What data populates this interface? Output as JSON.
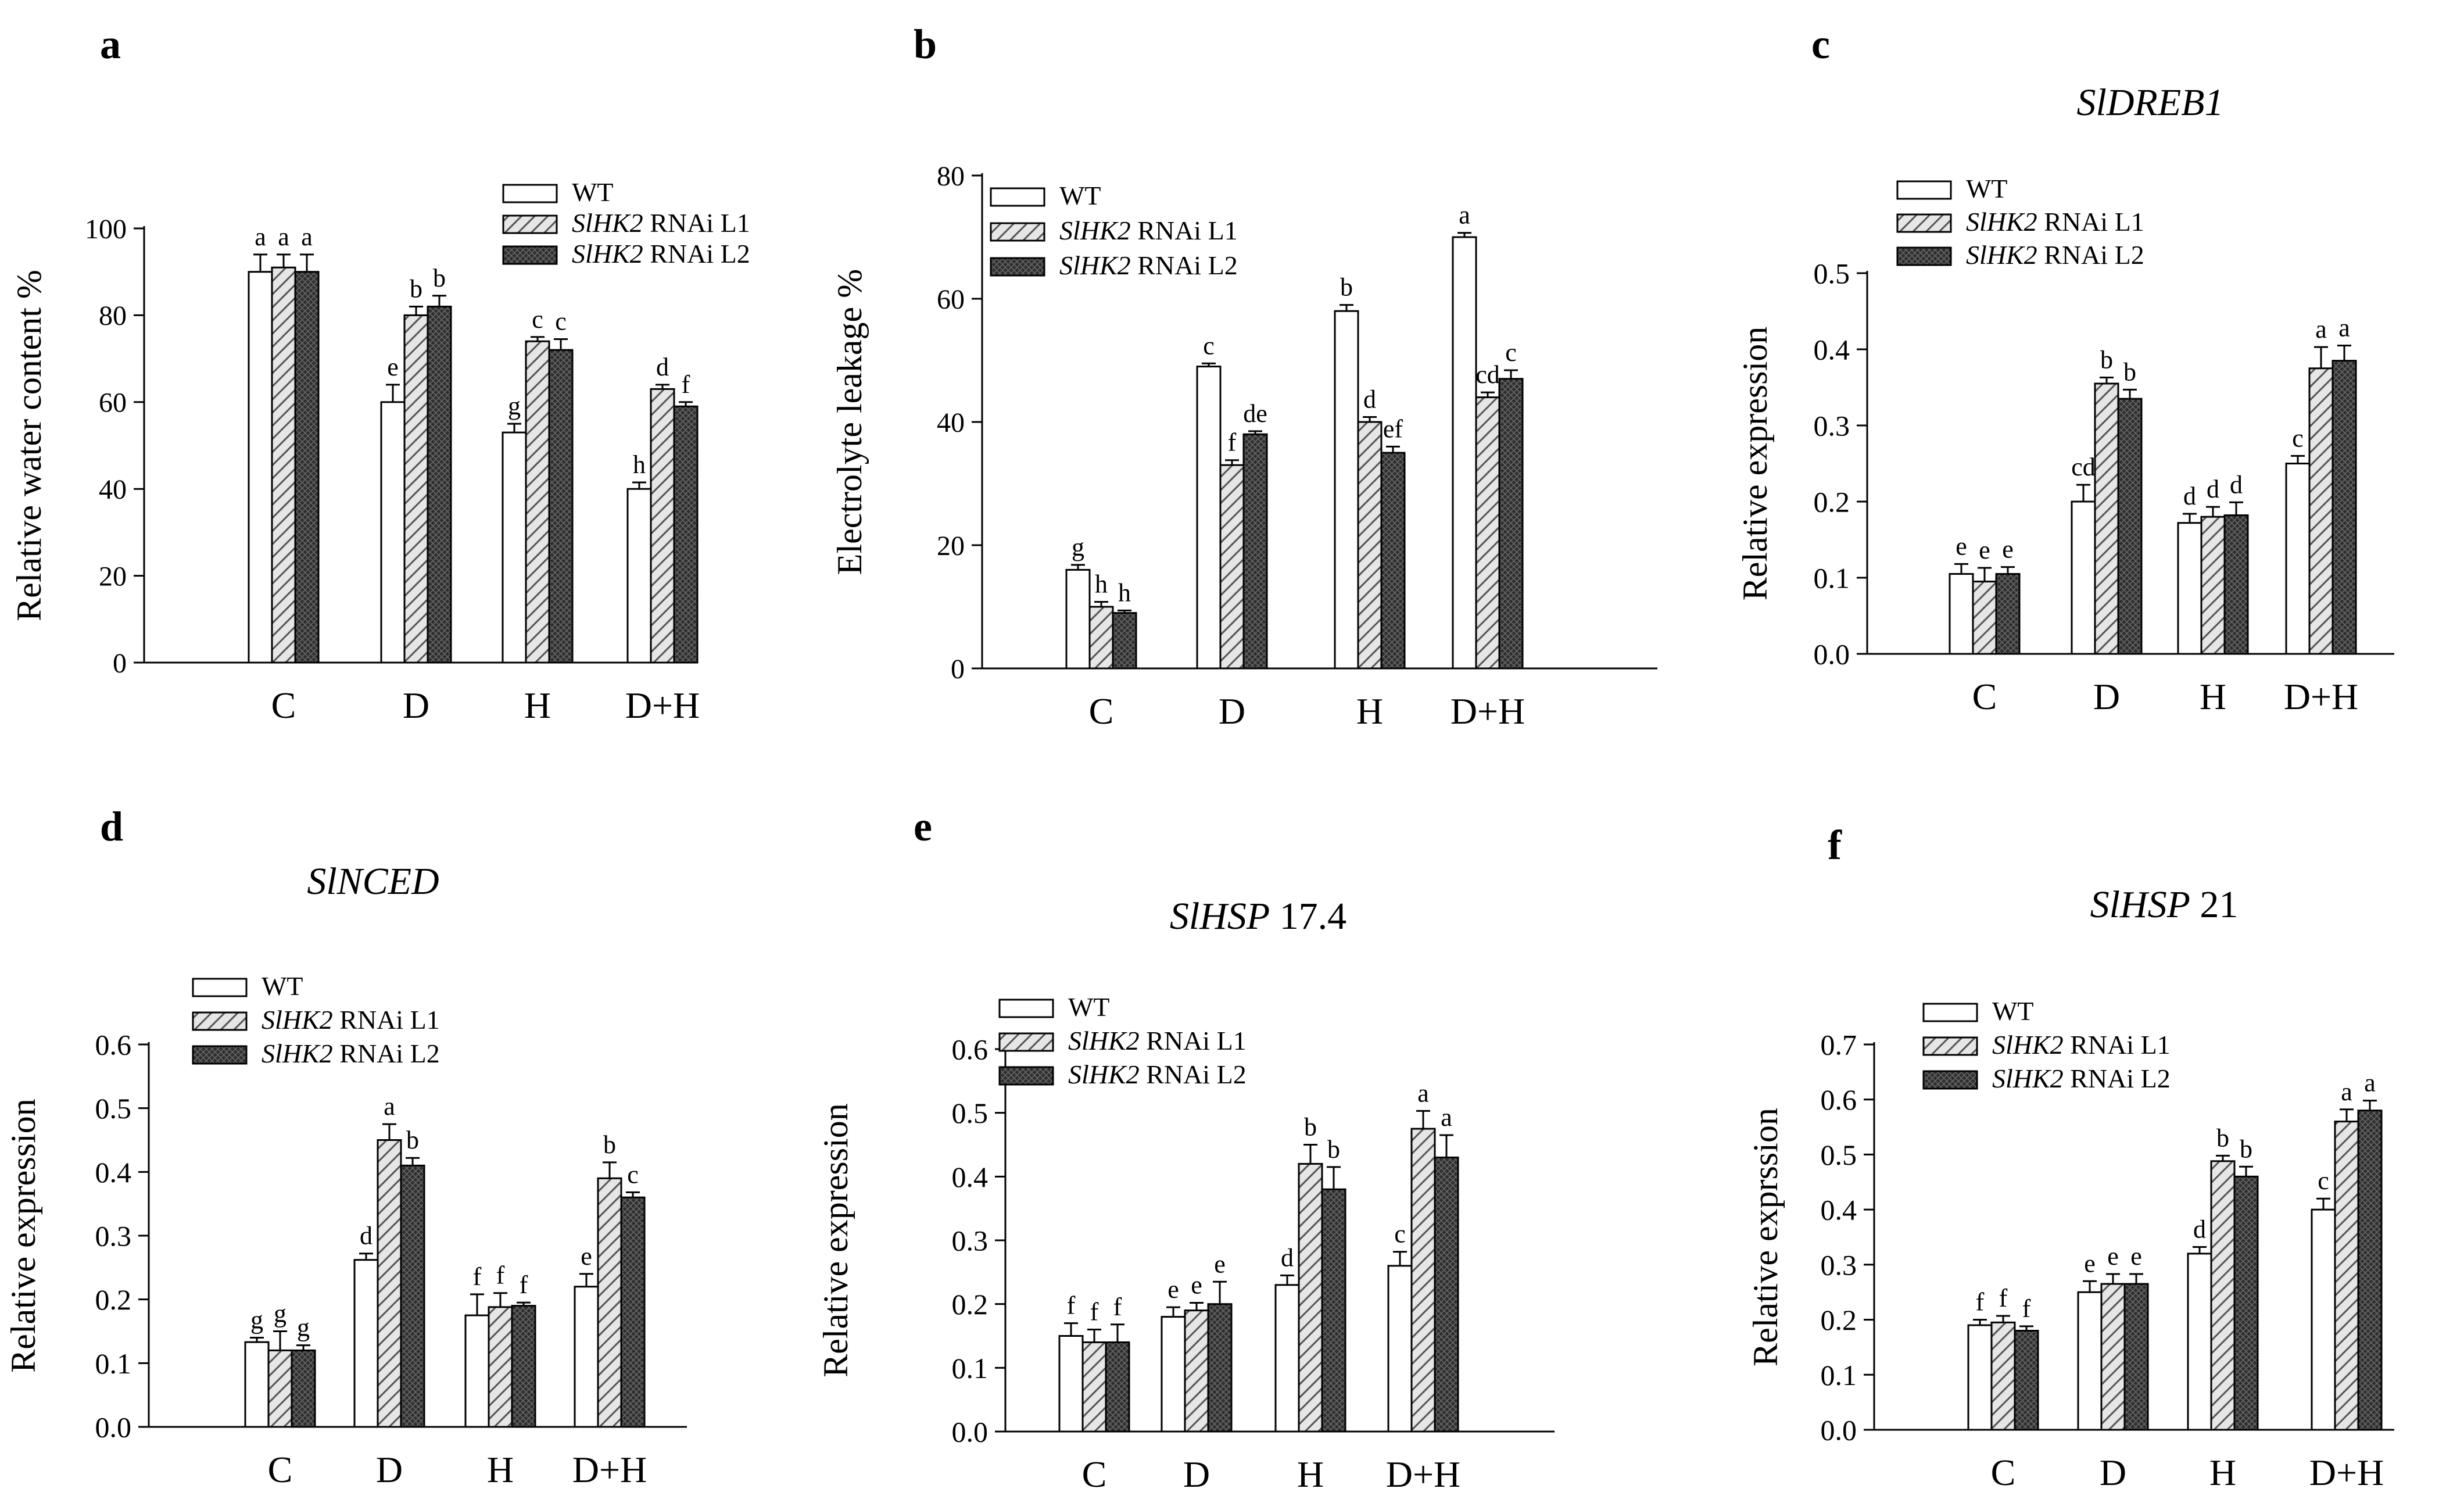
{
  "figure": {
    "legend_labels": {
      "wt": "WT",
      "rnai_gene": "SlHK2",
      "rnai_l1_suffix": "RNAi L1",
      "rnai_l2_suffix": "RNAi L2"
    },
    "colors": {
      "wt": "#ffffff",
      "l1": "#d9d9d9",
      "l2": "#3a3a3a",
      "axis": "#000000"
    }
  },
  "chart_data": [
    {
      "panel": "a",
      "type": "bar",
      "title": "",
      "title_gene": "",
      "title_suffix": "",
      "ylabel": "Relative water content %",
      "ylim": [
        0,
        100
      ],
      "yticks": [
        "0",
        "20",
        "40",
        "60",
        "80",
        "100"
      ],
      "categories": [
        "C",
        "D",
        "H",
        "D+H"
      ],
      "series": [
        {
          "name": "WT",
          "values": [
            90,
            60,
            53,
            40
          ],
          "errors": [
            4,
            4,
            2,
            1.5
          ],
          "letters": [
            "a",
            "e",
            "g",
            "h"
          ]
        },
        {
          "name": "SlHK2 RNAi L1",
          "values": [
            91,
            80,
            74,
            63
          ],
          "errors": [
            3,
            2,
            1,
            1
          ],
          "letters": [
            "a",
            "b",
            "c",
            "d"
          ]
        },
        {
          "name": "SlHK2 RNAi L2",
          "values": [
            90,
            82,
            72,
            59
          ],
          "errors": [
            4,
            2.5,
            2.5,
            1
          ],
          "letters": [
            "a",
            "b",
            "c",
            "f"
          ]
        }
      ]
    },
    {
      "panel": "b",
      "type": "bar",
      "title": "",
      "title_gene": "",
      "title_suffix": "",
      "ylabel": "Electrolyte leakage %",
      "ylim": [
        0,
        80
      ],
      "yticks": [
        "0",
        "20",
        "40",
        "60",
        "80"
      ],
      "categories": [
        "C",
        "D",
        "H",
        "D+H"
      ],
      "series": [
        {
          "name": "WT",
          "values": [
            16,
            49,
            58,
            70
          ],
          "errors": [
            0.8,
            0.5,
            1,
            0.7
          ],
          "letters": [
            "g",
            "c",
            "b",
            "a"
          ]
        },
        {
          "name": "SlHK2 RNAi L1",
          "values": [
            10,
            33,
            40,
            44
          ],
          "errors": [
            0.8,
            0.8,
            0.8,
            0.8
          ],
          "letters": [
            "h",
            "f",
            "d",
            "cd"
          ]
        },
        {
          "name": "SlHK2 RNAi L2",
          "values": [
            9,
            38,
            35,
            47
          ],
          "errors": [
            0.4,
            0.5,
            1,
            1.4
          ],
          "letters": [
            "h",
            "de",
            "ef",
            "c"
          ]
        }
      ]
    },
    {
      "panel": "c",
      "type": "bar",
      "title": "SlDREB1",
      "title_gene": "SlDREB1",
      "title_suffix": "",
      "ylabel": "Relative expression",
      "ylim": [
        0,
        0.5
      ],
      "yticks": [
        "0.0",
        "0.1",
        "0.2",
        "0.3",
        "0.4",
        "0.5"
      ],
      "categories": [
        "C",
        "D",
        "H",
        "D+H"
      ],
      "series": [
        {
          "name": "WT",
          "values": [
            0.105,
            0.2,
            0.172,
            0.25
          ],
          "errors": [
            0.013,
            0.022,
            0.012,
            0.01
          ],
          "letters": [
            "e",
            "cd",
            "d",
            "c"
          ]
        },
        {
          "name": "SlHK2 RNAi L1",
          "values": [
            0.095,
            0.355,
            0.18,
            0.375
          ],
          "errors": [
            0.018,
            0.008,
            0.013,
            0.028
          ],
          "letters": [
            "e",
            "b",
            "d",
            "a"
          ]
        },
        {
          "name": "SlHK2 RNAi L2",
          "values": [
            0.105,
            0.335,
            0.182,
            0.385
          ],
          "errors": [
            0.009,
            0.012,
            0.017,
            0.02
          ],
          "letters": [
            "e",
            "b",
            "d",
            "a"
          ]
        }
      ]
    },
    {
      "panel": "d",
      "type": "bar",
      "title": "SlNCED",
      "title_gene": "SlNCED",
      "title_suffix": "",
      "ylabel": "Relative expression",
      "ylim": [
        0,
        0.6
      ],
      "yticks": [
        "0.0",
        "0.1",
        "0.2",
        "0.3",
        "0.4",
        "0.5",
        "0.6"
      ],
      "categories": [
        "C",
        "D",
        "H",
        "D+H"
      ],
      "series": [
        {
          "name": "WT",
          "values": [
            0.133,
            0.262,
            0.175,
            0.22
          ],
          "errors": [
            0.007,
            0.01,
            0.033,
            0.02
          ],
          "letters": [
            "g",
            "d",
            "f",
            "e"
          ]
        },
        {
          "name": "SlHK2 RNAi L1",
          "values": [
            0.12,
            0.45,
            0.188,
            0.39
          ],
          "errors": [
            0.03,
            0.025,
            0.022,
            0.025
          ],
          "letters": [
            "g",
            "a",
            "f",
            "b"
          ]
        },
        {
          "name": "SlHK2 RNAi L2",
          "values": [
            0.12,
            0.41,
            0.19,
            0.36
          ],
          "errors": [
            0.008,
            0.012,
            0.005,
            0.008
          ],
          "letters": [
            "g",
            "b",
            "f",
            "c"
          ]
        }
      ]
    },
    {
      "panel": "e",
      "type": "bar",
      "title": "SlHSP 17.4",
      "title_gene": "SlHSP",
      "title_suffix": " 17.4",
      "ylabel": "Relative expression",
      "ylim": [
        0,
        0.6
      ],
      "yticks": [
        "0.0",
        "0.1",
        "0.2",
        "0.3",
        "0.4",
        "0.5",
        "0.6"
      ],
      "categories": [
        "C",
        "D",
        "H",
        "D+H"
      ],
      "series": [
        {
          "name": "WT",
          "values": [
            0.15,
            0.18,
            0.23,
            0.26
          ],
          "errors": [
            0.02,
            0.015,
            0.015,
            0.022
          ],
          "letters": [
            "f",
            "e",
            "d",
            "c"
          ]
        },
        {
          "name": "SlHK2 RNAi L1",
          "values": [
            0.14,
            0.19,
            0.42,
            0.475
          ],
          "errors": [
            0.02,
            0.012,
            0.03,
            0.028
          ],
          "letters": [
            "f",
            "e",
            "b",
            "a"
          ]
        },
        {
          "name": "SlHK2 RNAi L2",
          "values": [
            0.14,
            0.2,
            0.38,
            0.43
          ],
          "errors": [
            0.028,
            0.035,
            0.035,
            0.035
          ],
          "letters": [
            "f",
            "e",
            "b",
            "a"
          ]
        }
      ]
    },
    {
      "panel": "f",
      "type": "bar",
      "title": "SlHSP 21",
      "title_gene": "SlHSP",
      "title_suffix": " 21",
      "ylabel": "Relative exprssion",
      "ylim": [
        0,
        0.7
      ],
      "yticks": [
        "0.0",
        "0.1",
        "0.2",
        "0.3",
        "0.4",
        "0.5",
        "0.6",
        "0.7"
      ],
      "categories": [
        "C",
        "D",
        "H",
        "D+H"
      ],
      "series": [
        {
          "name": "WT",
          "values": [
            0.19,
            0.25,
            0.32,
            0.4
          ],
          "errors": [
            0.01,
            0.02,
            0.012,
            0.02
          ],
          "letters": [
            "f",
            "e",
            "d",
            "c"
          ]
        },
        {
          "name": "SlHK2 RNAi L1",
          "values": [
            0.195,
            0.265,
            0.488,
            0.56
          ],
          "errors": [
            0.012,
            0.018,
            0.01,
            0.022
          ],
          "letters": [
            "f",
            "e",
            "b",
            "a"
          ]
        },
        {
          "name": "SlHK2 RNAi L2",
          "values": [
            0.18,
            0.265,
            0.46,
            0.58
          ],
          "errors": [
            0.008,
            0.018,
            0.018,
            0.018
          ],
          "letters": [
            "f",
            "e",
            "b",
            "a"
          ]
        }
      ]
    }
  ]
}
